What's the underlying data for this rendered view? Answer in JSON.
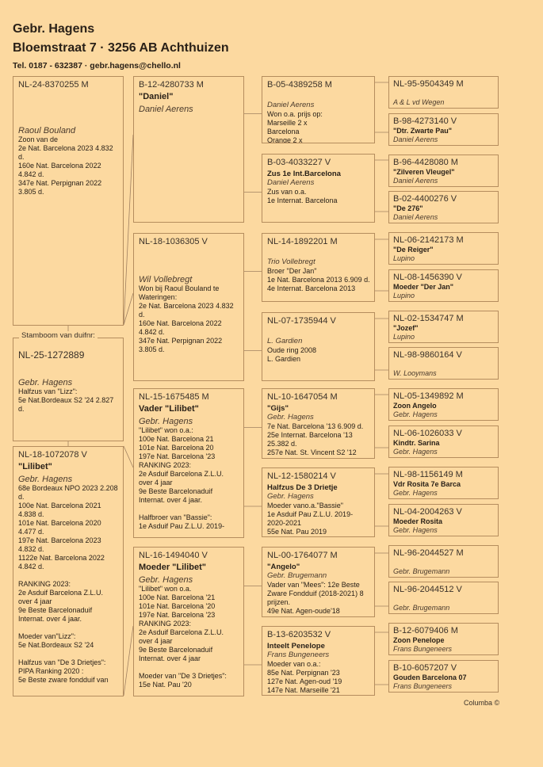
{
  "header": {
    "name": "Gebr. Hagens",
    "address": "Bloemstraat 7  ·  3256 AB  Achthuizen",
    "contact": "Tel. 0187 - 632387  ·  gebr.hagens@chello.nl"
  },
  "footer": {
    "brand": "Columba ©"
  },
  "subject": {
    "label": "Stamboom van duifnr:",
    "ring": "NL-25-1272889",
    "name": "",
    "breeder": "Gebr. Hagens",
    "notes": "Halfzus van \"Lizz\":\n5e Nat.Bordeaux S2 '24 2.827 d."
  },
  "boxes": {
    "sire": {
      "ring": "NL-24-8370255 M",
      "name": "",
      "breeder": "Raoul Bouland",
      "notes": "Zoon van de\n2e Nat. Barcelona 2023 4.832 d.\n160e Nat. Barcelona 2022\n4.842 d.\n347e Nat. Perpignan 2022\n3.805 d."
    },
    "dam": {
      "ring": "NL-18-1072078 V",
      "name": "\"Lilibet\"",
      "breeder": "Gebr. Hagens",
      "notes": "68e Bordeaux NPO 2023   2.208 d.\n100e Nat. Barcelona 2021\n4.838 d.\n101e Nat. Barcelona 2020 4.477 d.\n197e Nat. Barcelona 2023\n4.832 d.\n1122e Nat. Barcelona 2022\n4.842 d.\n\nRANKING 2023:\n2e Asduif Barcelona Z.L.U. over 4 jaar\n9e Beste Barcelonaduif Internat. over 4 jaar.\n\nMoeder van\"Lizz\":\n5e Nat.Bordeaux S2 '24\n\nHalfzus van \"De 3 Drietjes\":\nPIPA Ranking 2020 :\n5e Beste zware fondduif van"
    },
    "ss": {
      "ring": "B-12-4280733 M",
      "name": "\"Daniel\"",
      "breeder": "Daniel Aerens",
      "notes": ""
    },
    "sd": {
      "ring": "NL-18-1036305 V",
      "name": "",
      "breeder": "Wil Vollebregt",
      "notes": "Won bij Raoul Bouland te Wateringen:\n2e Nat. Barcelona 2023 4.832 d.\n160e Nat. Barcelona 2022\n4.842 d.\n347e Nat. Perpignan 2022\n3.805 d."
    },
    "ds": {
      "ring": "NL-15-1675485 M",
      "name": "Vader \"Lilibet\"",
      "breeder": "Gebr. Hagens",
      "notes": "\"Lilibet\" won o.a.:\n100e Nat. Barcelona 21\n101e Nat. Barcelona 20\n197e Nat. Barcelona '23\nRANKING 2023:\n2e Asduif Barcelona Z.L.U. over 4 jaar\n9e Beste Barcelonaduif Internat. over 4 jaar.\n\nHalfbroer van \"Bassie\":\n1e Asduif  Pau Z.L.U.  2019-"
    },
    "dd": {
      "ring": "NL-16-1494040 V",
      "name": "Moeder \"Lilibet\"",
      "breeder": "Gebr. Hagens",
      "notes": "\"Lilibet\" won o.a.\n100e Nat. Barcelona '21\n101e Nat. Barcelona '20\n197e Nat. Barcelona '23\nRANKING 2023:\n2e Asduif Barcelona Z.L.U. over 4 jaar\n9e Beste Barcelonaduif Internat. over 4 jaar\n\nMoeder van \"De 3 Drietjes\":\n15e Nat. Pau '20"
    },
    "sss": {
      "ring": "B-05-4389258 M",
      "name": "",
      "breeder": "Daniel Aerens",
      "notes": "Won o.a. prijs op:\nMarseille 2 x\nBarcelona\nOrange 2 x"
    },
    "ssd": {
      "ring": "B-03-4033227 V",
      "name": "Zus 1e Int.Barcelona",
      "breeder": "Daniel Aerens",
      "notes": "Zus van o.a.\n1e Internat. Barcelona"
    },
    "sds": {
      "ring": "NL-14-1892201 M",
      "name": "",
      "breeder": "Trio Vollebregt",
      "notes": "Broer \"Der Jan\"\n1e Nat. Barcelona 2013  6.909 d.\n4e Internat. Barcelona 2013"
    },
    "sdd": {
      "ring": "NL-07-1735944 V",
      "name": "",
      "breeder": "L. Gardien",
      "notes": "Oude ring 2008\nL. Gardien"
    },
    "dss": {
      "ring": "NL-10-1647054 M",
      "name": "\"Gijs\"",
      "breeder": "Gebr. Hagens",
      "notes": "7e Nat. Barcelona '13  6.909 d.\n25e Internat. Barcelona '13\n25.382 d.\n257e Nat. St. Vincent S2  '12"
    },
    "dsd": {
      "ring": "NL-12-1580214 V",
      "name": "Halfzus De 3 Drietje",
      "breeder": "Gebr. Hagens",
      "notes": "Moeder vano.a.\"Bassie\"\n1e Asduif  Pau Z.L.U.  2019-2020-2021\n55e Nat. Pau 2019"
    },
    "dds": {
      "ring": "NL-00-1764077 M",
      "name": "\"Angelo\"",
      "breeder": "Gebr. Brugemann",
      "notes": "Vader van \"Mees\": 12e Beste Zware Fondduif (2018-2021)  8 prijzen.\n49e Nat. Agen-oude'18"
    },
    "ddd": {
      "ring": "B-13-6203532 V",
      "name": "Inteelt Penelope",
      "breeder": "Frans Bungeneers",
      "notes": "Moeder van o.a.:\n85e Nat. Perpignan '23\n127e Nat. Agen-oud '19\n147e Nat. Marseille '21"
    },
    "ssss": {
      "ring": "NL-95-9504349 M",
      "name": "",
      "breeder": "A & L vd Wegen"
    },
    "sssd": {
      "ring": "B-98-4273140 V",
      "name": "\"Dtr. Zwarte Pau\"",
      "breeder": "Daniel Aerens"
    },
    "ssds": {
      "ring": "B-96-4428080 M",
      "name": "\"Zilveren Vleugel\"",
      "breeder": "Daniel Aerens"
    },
    "ssdd": {
      "ring": "B-02-4400276 V",
      "name": "\"De 276\"",
      "breeder": "Daniel Aerens"
    },
    "sdss": {
      "ring": "NL-06-2142173 M",
      "name": "\"De Reiger\"",
      "breeder": "Lupino"
    },
    "sdsd": {
      "ring": "NL-08-1456390 V",
      "name": "Moeder \"Der Jan\"",
      "breeder": "Lupino"
    },
    "sdds": {
      "ring": "NL-02-1534747 M",
      "name": "\"Jozef\"",
      "breeder": "Lupino"
    },
    "sddd": {
      "ring": "NL-98-9860164 V",
      "name": "",
      "breeder": "W. Looymans"
    },
    "dsss": {
      "ring": "NL-05-1349892 M",
      "name": "Zoon Angelo",
      "breeder": "Gebr. Hagens"
    },
    "dssd": {
      "ring": "NL-06-1026033 V",
      "name": "Kindtr. Sarina",
      "breeder": "Gebr. Hagens"
    },
    "dsds": {
      "ring": "NL-98-1156149 M",
      "name": "Vdr Rosita 7e Barca",
      "breeder": "Gebr. Hagens"
    },
    "dsdd": {
      "ring": "NL-04-2004263 V",
      "name": "Moeder Rosita",
      "breeder": "Gebr. Hagens"
    },
    "ddss": {
      "ring": "NL-96-2044527 M",
      "name": "",
      "breeder": "Gebr. Brugemann"
    },
    "ddsd": {
      "ring": "NL-96-2044512 V",
      "name": "",
      "breeder": "Gebr. Brugemann"
    },
    "ddds": {
      "ring": "B-12-6079406 M",
      "name": "Zoon Penelope",
      "breeder": "Frans Bungeneers"
    },
    "dddd": {
      "ring": "B-10-6057207 V",
      "name": "Gouden Barcelona 07",
      "breeder": "Frans Bungeneers"
    }
  }
}
